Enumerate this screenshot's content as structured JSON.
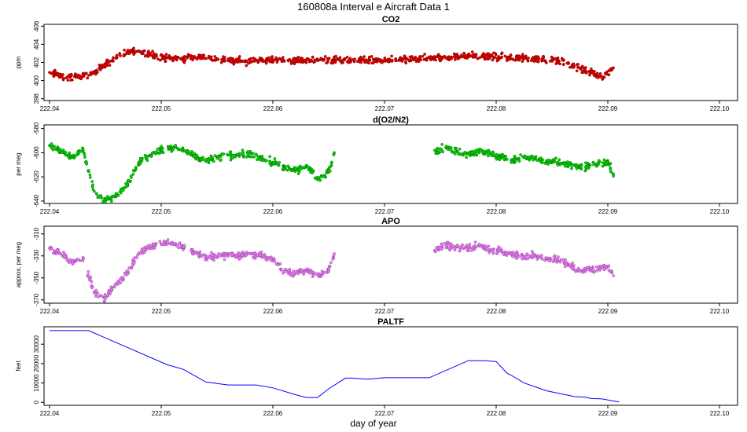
{
  "figure": {
    "title": "160808a   Interval e Aircraft Data 1",
    "xlabel": "day of year"
  },
  "chart_data": [
    {
      "type": "scatter",
      "title": "CO2",
      "ylabel": "ppm",
      "color": "#e00000",
      "stroke": "#8a0000",
      "xlim": [
        222.04,
        222.1
      ],
      "ylim": [
        397.8,
        406.2
      ],
      "xticks": [
        "222.04",
        "222.05",
        "222.06",
        "222.07",
        "222.08",
        "222.09",
        "222.10"
      ],
      "yticks": [
        398,
        400,
        402,
        404,
        406
      ],
      "series": [
        {
          "x": [
            222.04,
            222.0415,
            222.043,
            222.0445,
            222.046,
            222.0475,
            222.049,
            222.0505,
            222.052,
            222.0535,
            222.055,
            222.0565,
            222.058,
            222.0595,
            222.061,
            222.0625,
            222.064,
            222.0655,
            222.067,
            222.0685,
            222.07,
            222.0715,
            222.073,
            222.0745,
            222.076,
            222.0775,
            222.079,
            222.0805,
            222.082,
            222.0835,
            222.085,
            222.0865,
            222.088,
            222.0895,
            222.0905
          ],
          "y": [
            400.9,
            400.3,
            400.5,
            401.3,
            402.6,
            403.3,
            402.9,
            402.5,
            402.4,
            402.7,
            402.4,
            402.2,
            402.1,
            402.4,
            402.2,
            402.3,
            402.2,
            402.3,
            402.2,
            402.2,
            402.2,
            402.3,
            402.4,
            402.5,
            402.6,
            402.8,
            402.6,
            402.6,
            402.5,
            402.4,
            402.3,
            401.9,
            401.1,
            400.4,
            401.4
          ]
        }
      ]
    },
    {
      "type": "scatter",
      "title": "d(O2/N2)",
      "ylabel": "per meg",
      "color": "#00e000",
      "stroke": "#006600",
      "xlim": [
        222.04,
        222.1
      ],
      "ylim": [
        -642,
        -577
      ],
      "xticks": [
        "222.04",
        "222.05",
        "222.06",
        "222.07",
        "222.08",
        "222.09",
        "222.10"
      ],
      "yticks": [
        -640,
        -620,
        -600,
        -580
      ],
      "series": [
        {
          "x": [
            222.04,
            222.041,
            222.042,
            222.043,
            222.044,
            222.045,
            222.046,
            222.047,
            222.048,
            222.049,
            222.05,
            222.051,
            222.052,
            222.053,
            222.054,
            222.055,
            222.056,
            222.057,
            222.058,
            222.059,
            222.06,
            222.061,
            222.062,
            222.063,
            222.064,
            222.065,
            222.0655,
            222.0745,
            222.0755,
            222.0765,
            222.0775,
            222.0785,
            222.0795,
            222.0805,
            222.0815,
            222.0825,
            222.0835,
            222.0845,
            222.0855,
            222.0865,
            222.0875,
            222.09,
            222.0905
          ],
          "y": [
            -594,
            -598,
            -604,
            -598,
            -632,
            -640,
            -635,
            -626,
            -608,
            -602,
            -598,
            -596,
            -598,
            -602,
            -607,
            -604,
            -602,
            -603,
            -600,
            -605,
            -608,
            -612,
            -615,
            -611,
            -622,
            -616,
            -600,
            -598,
            -596,
            -599,
            -601,
            -598,
            -601,
            -604,
            -606,
            -604,
            -605,
            -608,
            -608,
            -610,
            -612,
            -608,
            -618
          ]
        }
      ]
    },
    {
      "type": "scatter",
      "title": "APO",
      "ylabel": "approx. per meg",
      "color": "#ee82ee",
      "stroke": "#8e3fa8",
      "xlim": [
        222.04,
        222.1
      ],
      "ylim": [
        -373,
        -303
      ],
      "xticks": [
        "222.04",
        "222.05",
        "222.06",
        "222.07",
        "222.08",
        "222.09",
        "222.10"
      ],
      "yticks": [
        -370,
        -350,
        -330,
        -310
      ],
      "series": [
        {
          "x": [
            222.04,
            222.041,
            222.042,
            222.043,
            222.044,
            222.045,
            222.046,
            222.047,
            222.048,
            222.049,
            222.05,
            222.051,
            222.052,
            222.053,
            222.054,
            222.055,
            222.056,
            222.057,
            222.058,
            222.059,
            222.06,
            222.061,
            222.062,
            222.063,
            222.064,
            222.065,
            222.0655,
            222.0745,
            222.0755,
            222.0765,
            222.0775,
            222.0785,
            222.0795,
            222.0805,
            222.0815,
            222.0825,
            222.0835,
            222.0845,
            222.0855,
            222.0865,
            222.0875,
            222.09,
            222.0905
          ],
          "y": [
            -323,
            -328,
            -336,
            -333,
            -363,
            -368,
            -355,
            -344,
            -328,
            -322,
            -319,
            -318,
            -322,
            -327,
            -331,
            -330,
            -329,
            -330,
            -328,
            -330,
            -333,
            -344,
            -346,
            -343,
            -347,
            -343,
            -328,
            -325,
            -320,
            -322,
            -323,
            -321,
            -325,
            -326,
            -328,
            -331,
            -330,
            -333,
            -333,
            -338,
            -343,
            -340,
            -348
          ]
        }
      ]
    },
    {
      "type": "line",
      "title": "PALTF",
      "ylabel": "feet",
      "color": "#0000ff",
      "xlim": [
        222.04,
        222.1
      ],
      "ylim": [
        -1500,
        39000
      ],
      "xticks": [
        "222.04",
        "222.05",
        "222.06",
        "222.07",
        "222.08",
        "222.09",
        "222.10"
      ],
      "yticks": [
        0,
        10000,
        20000,
        30000
      ],
      "series": [
        {
          "x": [
            222.04,
            222.0435,
            222.0505,
            222.052,
            222.054,
            222.056,
            222.0585,
            222.06,
            222.062,
            222.063,
            222.064,
            222.065,
            222.0665,
            222.067,
            222.0685,
            222.07,
            222.074,
            222.0775,
            222.079,
            222.08,
            222.081,
            222.0815,
            222.0825,
            222.0845,
            222.087,
            222.088,
            222.0885,
            222.0895,
            222.091
          ],
          "y": [
            37000,
            37000,
            19500,
            17000,
            10500,
            9000,
            9000,
            7500,
            4000,
            2500,
            2500,
            7000,
            12500,
            12500,
            12000,
            12700,
            12700,
            21500,
            21500,
            21000,
            15000,
            13500,
            10000,
            6000,
            3000,
            2700,
            2000,
            1800,
            200
          ]
        }
      ]
    }
  ]
}
